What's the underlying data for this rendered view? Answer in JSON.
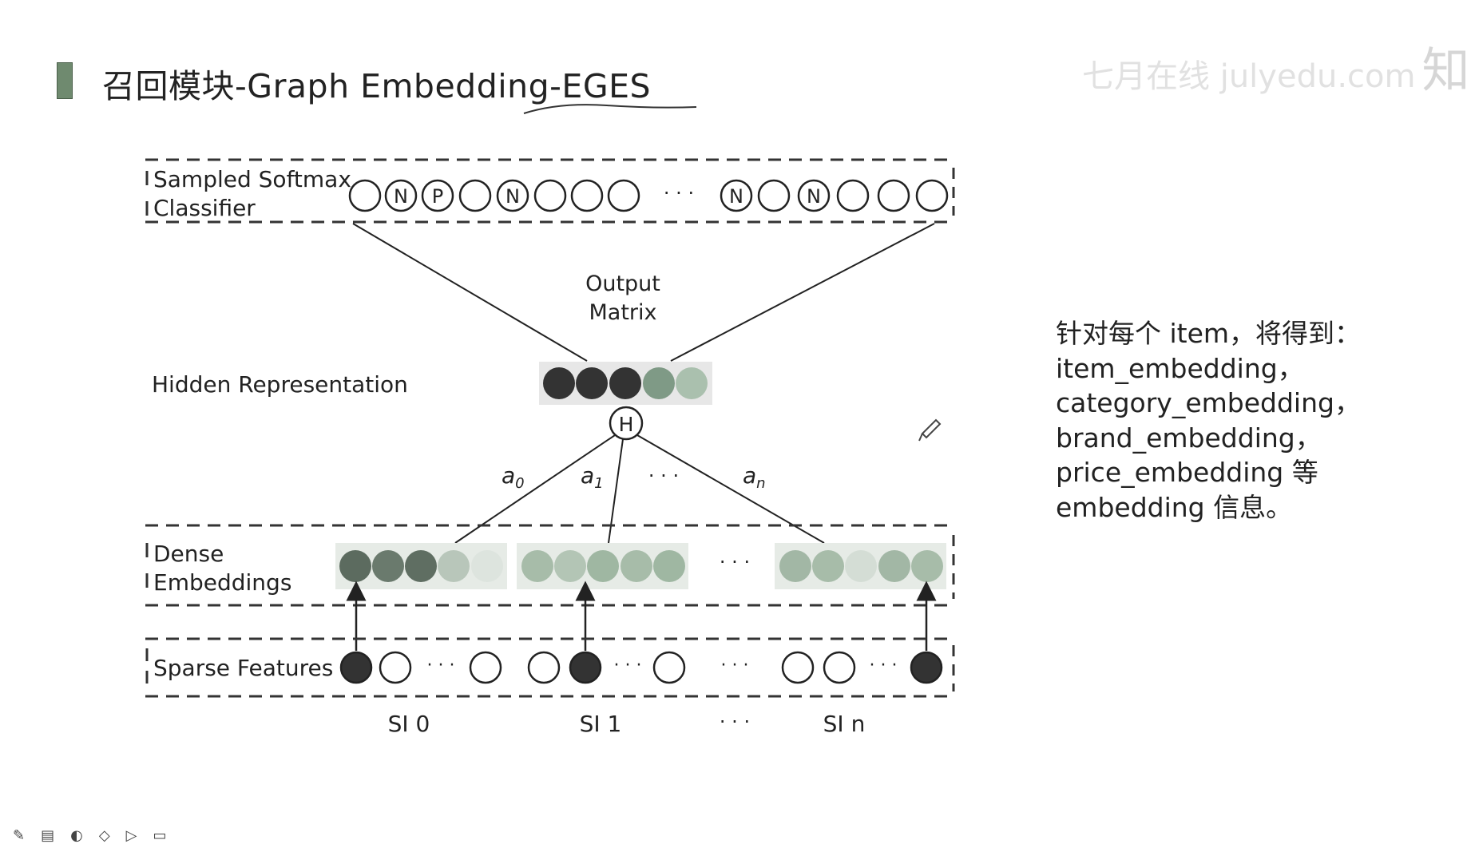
{
  "slide": {
    "title": "召回模块-Graph Embedding-EGES",
    "watermark": "七月在线 julyedu.com",
    "watermark_logo": "知乎",
    "notes": [
      "针对每个 item，将得到：",
      "item_embedding，",
      "category_embedding，",
      "brand_embedding，",
      "price_embedding 等",
      "embedding 信息。"
    ]
  },
  "diagram": {
    "softmax_label_1": "Sampled Softmax",
    "softmax_label_2": "Classifier",
    "output_label_1": "Output",
    "output_label_2": "Matrix",
    "hidden_label": "Hidden Representation",
    "h_node": "H",
    "weight_a0": "a",
    "weight_a0_sub": "0",
    "weight_a1": "a",
    "weight_a1_sub": "1",
    "weight_an": "a",
    "weight_an_sub": "n",
    "ellipsis": "· · ·",
    "dense_label_1": "Dense",
    "dense_label_2": "Embeddings",
    "sparse_label": "Sparse Features",
    "si0": "SI 0",
    "si1": "SI 1",
    "sin": "SI n",
    "softmax_nodes": [
      "",
      "N",
      "P",
      "",
      "N",
      "",
      "",
      "",
      "N",
      "",
      "N",
      "",
      "",
      ""
    ]
  },
  "colors": {
    "dark": "#333333",
    "line": "#222222",
    "title_bar": "#6f8a6f"
  },
  "icons": [
    "pen-icon",
    "note-icon",
    "palette-icon",
    "eraser-icon",
    "pointer-icon",
    "screen-icon"
  ]
}
